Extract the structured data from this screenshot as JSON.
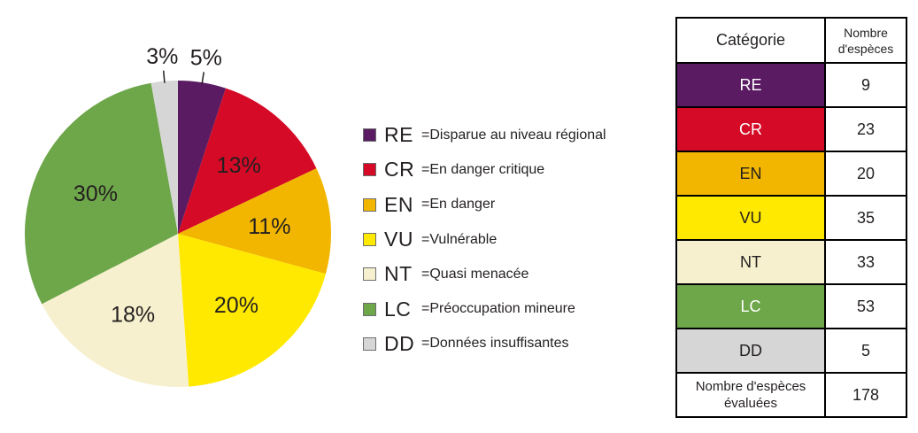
{
  "chart_data": {
    "type": "pie",
    "slices": [
      {
        "code": "RE",
        "label": "Disparue au niveau régional",
        "value": 9,
        "percent_label": "5%",
        "color": "#5a1b62"
      },
      {
        "code": "CR",
        "label": "En danger critique",
        "value": 23,
        "percent_label": "13%",
        "color": "#d40a26"
      },
      {
        "code": "EN",
        "label": "En danger",
        "value": 20,
        "percent_label": "11%",
        "color": "#f2b600"
      },
      {
        "code": "VU",
        "label": "Vulnérable",
        "value": 35,
        "percent_label": "20%",
        "color": "#ffe900"
      },
      {
        "code": "NT",
        "label": "Quasi menacée",
        "value": 33,
        "percent_label": "18%",
        "color": "#f7f0ce"
      },
      {
        "code": "LC",
        "label": "Préoccupation mineure",
        "value": 53,
        "percent_label": "30%",
        "color": "#6ea64a"
      },
      {
        "code": "DD",
        "label": "Données insuffisantes",
        "value": 5,
        "percent_label": "3%",
        "color": "#d6d6d6"
      }
    ]
  },
  "table": {
    "header_category": "Catégorie",
    "header_count_line1": "Nombre",
    "header_count_line2": "d'espèces",
    "total_label_line1": "Nombre d'espèces",
    "total_label_line2": "évaluées",
    "total_value": "178"
  },
  "colors": {
    "RE_text": "#ffffff",
    "CR_text": "#ffffff",
    "LC_text": "#ffffff"
  }
}
